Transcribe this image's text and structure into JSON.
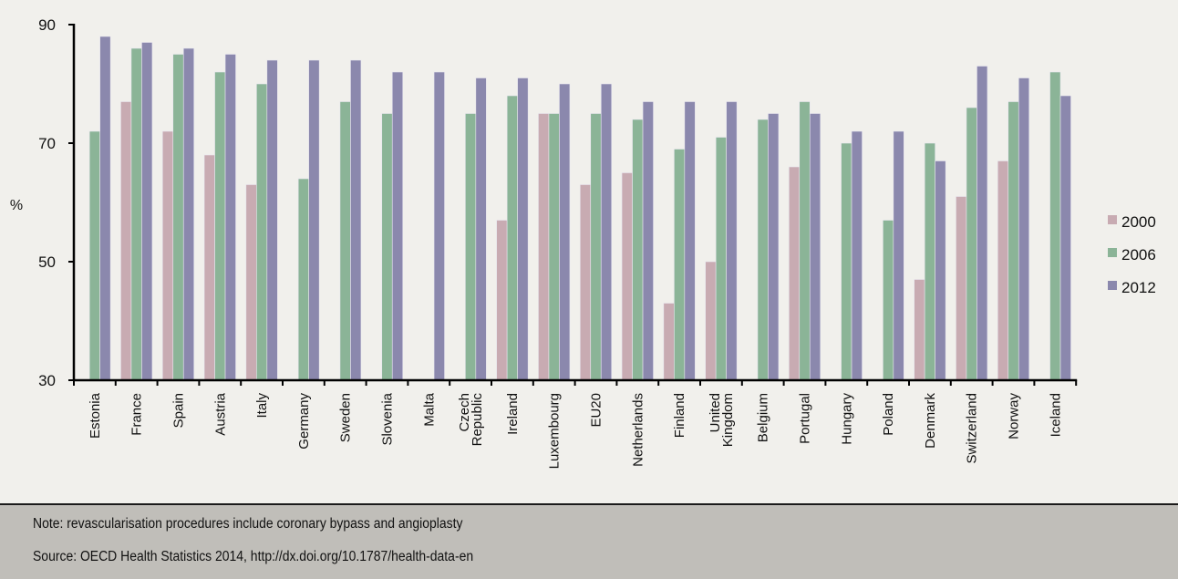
{
  "chart_data": {
    "type": "bar",
    "ylabel": "%",
    "ylim": [
      30,
      90
    ],
    "yticks": [
      30,
      50,
      70,
      90
    ],
    "grid": false,
    "legend_position": "right",
    "categories": [
      "Estonia",
      "France",
      "Spain",
      "Austria",
      "Italy",
      "Germany",
      "Sweden",
      "Slovenia",
      "Malta",
      "Czech Republic",
      "Ireland",
      "Luxembourg",
      "EU20",
      "Netherlands",
      "Finland",
      "United Kingdom",
      "Belgium",
      "Portugal",
      "Hungary",
      "Poland",
      "Denmark",
      "Switzerland",
      "Norway",
      "Iceland"
    ],
    "series": [
      {
        "name": "2000",
        "color": "#c8abb2",
        "values": [
          null,
          77,
          72,
          68,
          63,
          null,
          null,
          null,
          null,
          null,
          57,
          75,
          63,
          65,
          43,
          50,
          null,
          66,
          null,
          null,
          47,
          61,
          67,
          null
        ]
      },
      {
        "name": "2006",
        "color": "#8bb497",
        "values": [
          72,
          86,
          85,
          82,
          80,
          64,
          77,
          75,
          null,
          75,
          78,
          75,
          75,
          74,
          69,
          71,
          74,
          77,
          70,
          57,
          70,
          76,
          77,
          82
        ]
      },
      {
        "name": "2012",
        "color": "#8b88ad",
        "values": [
          88,
          87,
          86,
          85,
          84,
          84,
          84,
          82,
          82,
          81,
          81,
          80,
          80,
          77,
          77,
          77,
          75,
          75,
          72,
          72,
          67,
          83,
          81,
          78
        ]
      }
    ]
  },
  "footer": {
    "note": "Note: revascularisation procedures include coronary bypass and angioplasty",
    "source": "Source: OECD Health Statistics 2014, http://dx.doi.org/10.1787/health-data-en"
  }
}
